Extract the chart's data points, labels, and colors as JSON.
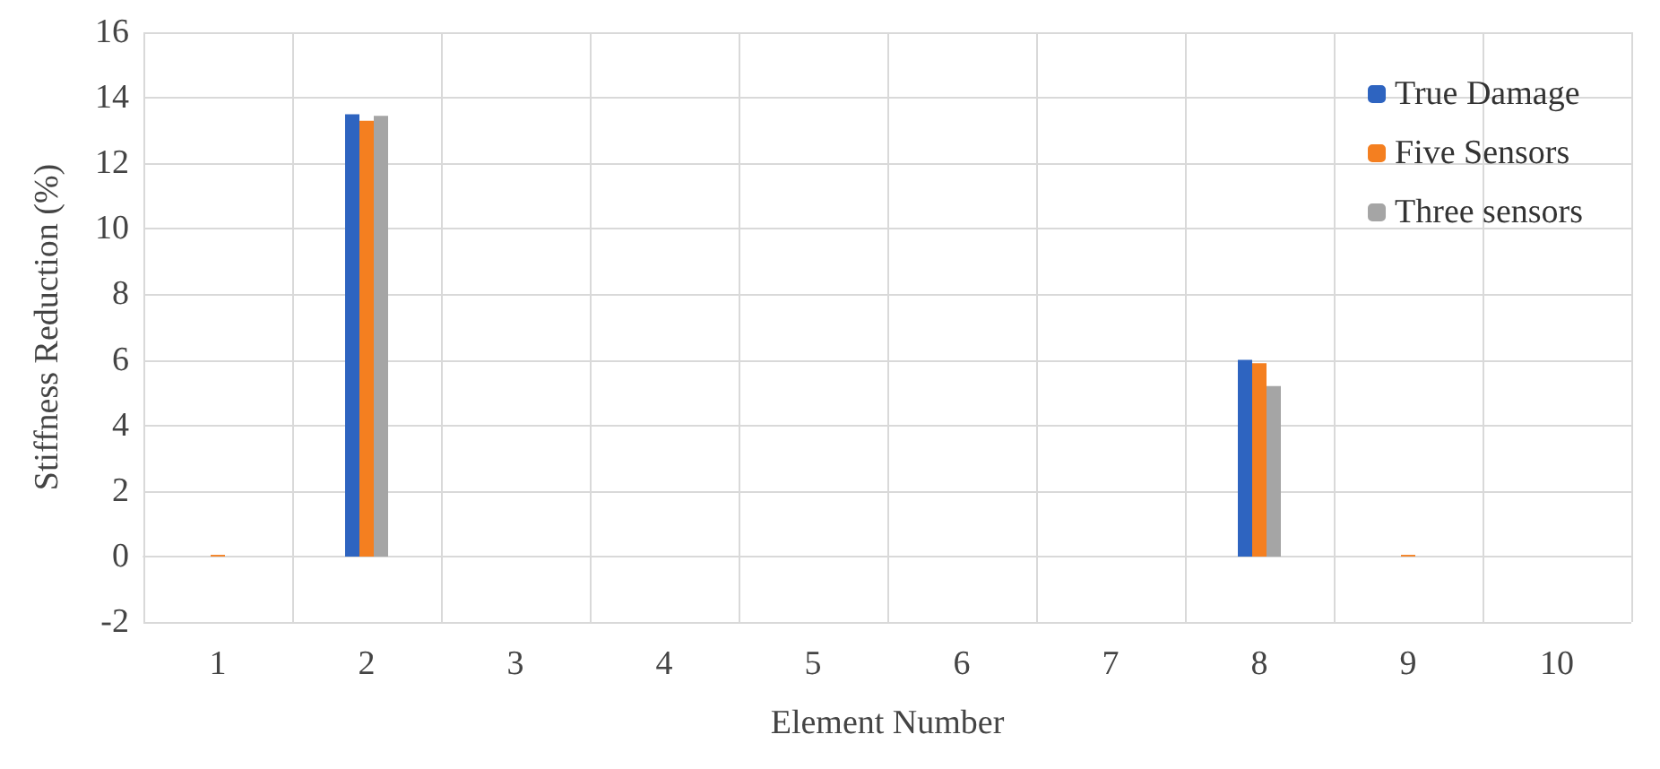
{
  "chart_data": {
    "type": "bar",
    "xlabel": "Element Number",
    "ylabel": "Stiffness Reduction (%)",
    "categories": [
      "1",
      "2",
      "3",
      "4",
      "5",
      "6",
      "7",
      "8",
      "9",
      "10"
    ],
    "series": [
      {
        "name": "True Damage",
        "color": "#2e64c0",
        "values": [
          0,
          13.5,
          0,
          0,
          0,
          0,
          0,
          6.0,
          0,
          0
        ]
      },
      {
        "name": "Five Sensors",
        "color": "#f47f20",
        "values": [
          0.05,
          13.3,
          0,
          0,
          0,
          0,
          0,
          5.9,
          0.05,
          0
        ]
      },
      {
        "name": "Three sensors",
        "color": "#a5a5a5",
        "values": [
          0,
          13.45,
          0,
          0,
          0,
          0,
          0,
          5.2,
          0,
          0
        ]
      }
    ],
    "ylim": [
      -2,
      16
    ],
    "yticks": [
      -2,
      0,
      2,
      4,
      6,
      8,
      10,
      12,
      14,
      16
    ],
    "grid": true,
    "legend": "top right"
  }
}
